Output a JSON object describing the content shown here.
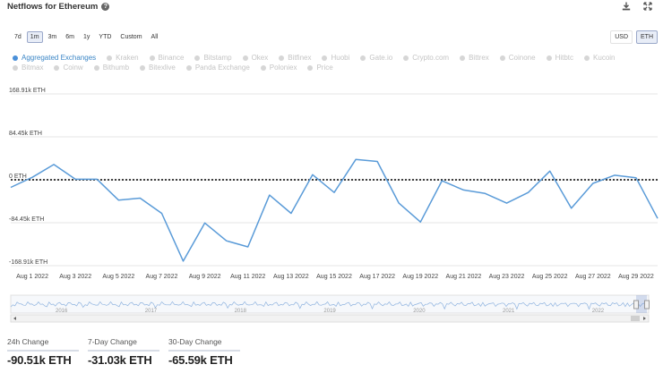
{
  "title": "Netflows for Ethereum",
  "ranges": [
    "7d",
    "1m",
    "3m",
    "6m",
    "1y",
    "YTD",
    "Custom",
    "All"
  ],
  "active_range": "1m",
  "units": [
    "USD",
    "ETH"
  ],
  "active_unit": "ETH",
  "legend": [
    {
      "label": "Aggregated Exchanges",
      "active": true
    },
    {
      "label": "Kraken",
      "active": false
    },
    {
      "label": "Binance",
      "active": false
    },
    {
      "label": "Bitstamp",
      "active": false
    },
    {
      "label": "Okex",
      "active": false
    },
    {
      "label": "Bitfinex",
      "active": false
    },
    {
      "label": "Huobi",
      "active": false
    },
    {
      "label": "Gate.io",
      "active": false
    },
    {
      "label": "Crypto.com",
      "active": false
    },
    {
      "label": "Bittrex",
      "active": false
    },
    {
      "label": "Coinone",
      "active": false
    },
    {
      "label": "Hitbtc",
      "active": false
    },
    {
      "label": "Kucoin",
      "active": false
    },
    {
      "label": "Bitmax",
      "active": false
    },
    {
      "label": "Coinw",
      "active": false
    },
    {
      "label": "Bithumb",
      "active": false
    },
    {
      "label": "Bitexlive",
      "active": false
    },
    {
      "label": "Panda Exchange",
      "active": false
    },
    {
      "label": "Poloniex",
      "active": false
    },
    {
      "label": "Price",
      "active": false
    }
  ],
  "colors": {
    "line": "#5a9bd8",
    "zero_line": "#000000",
    "grid": "#e6e6e6"
  },
  "chart_data": {
    "type": "line",
    "ylabel": "",
    "ylim": [
      -168.91,
      168.91
    ],
    "y_ticks": [
      168.91,
      84.45,
      0,
      -84.45,
      -168.91
    ],
    "y_tick_labels": [
      "168.91k ETH",
      "84.45k ETH",
      "0 ETH",
      "-84.45k ETH",
      "-168.91k ETH"
    ],
    "x_tick_labels": [
      "Aug 1 2022",
      "Aug 3 2022",
      "Aug 5 2022",
      "Aug 7 2022",
      "Aug 9 2022",
      "Aug 11 2022",
      "Aug 13 2022",
      "Aug 15 2022",
      "Aug 17 2022",
      "Aug 19 2022",
      "Aug 21 2022",
      "Aug 23 2022",
      "Aug 25 2022",
      "Aug 27 2022",
      "Aug 29 2022"
    ],
    "x_range": [
      "Jul 31 2022",
      "Aug 30 2022"
    ],
    "series": [
      {
        "values": [
          {
            "x": "Jul 31 2022",
            "y": -15
          },
          {
            "x": "Aug 1 2022",
            "y": 5
          },
          {
            "x": "Aug 2 2022",
            "y": 30
          },
          {
            "x": "Aug 3 2022",
            "y": 1
          },
          {
            "x": "Aug 4 2022",
            "y": 1
          },
          {
            "x": "Aug 5 2022",
            "y": -40
          },
          {
            "x": "Aug 6 2022",
            "y": -36
          },
          {
            "x": "Aug 7 2022",
            "y": -66
          },
          {
            "x": "Aug 8 2022",
            "y": -160
          },
          {
            "x": "Aug 9 2022",
            "y": -85
          },
          {
            "x": "Aug 10 2022",
            "y": -120
          },
          {
            "x": "Aug 11 2022",
            "y": -132
          },
          {
            "x": "Aug 12 2022",
            "y": -30
          },
          {
            "x": "Aug 13 2022",
            "y": -66
          },
          {
            "x": "Aug 14 2022",
            "y": 10
          },
          {
            "x": "Aug 15 2022",
            "y": -25
          },
          {
            "x": "Aug 16 2022",
            "y": 40
          },
          {
            "x": "Aug 17 2022",
            "y": 36
          },
          {
            "x": "Aug 18 2022",
            "y": -46
          },
          {
            "x": "Aug 19 2022",
            "y": -83
          },
          {
            "x": "Aug 20 2022",
            "y": -2
          },
          {
            "x": "Aug 21 2022",
            "y": -20
          },
          {
            "x": "Aug 22 2022",
            "y": -27
          },
          {
            "x": "Aug 23 2022",
            "y": -46
          },
          {
            "x": "Aug 24 2022",
            "y": -25
          },
          {
            "x": "Aug 25 2022",
            "y": 17
          },
          {
            "x": "Aug 26 2022",
            "y": -56
          },
          {
            "x": "Aug 27 2022",
            "y": -7
          },
          {
            "x": "Aug 28 2022",
            "y": 9
          },
          {
            "x": "Aug 29 2022",
            "y": 4
          },
          {
            "x": "Aug 30 2022",
            "y": -76
          }
        ]
      }
    ],
    "reference_line": {
      "y": 0,
      "style": "dotted"
    },
    "grid": true,
    "legend_position": "top-left"
  },
  "navigator": {
    "year_labels": [
      "2016",
      "2017",
      "2018",
      "2019",
      "2020",
      "2021",
      "2022"
    ]
  },
  "stats": [
    {
      "label": "24h Change",
      "value": "-90.51k ETH"
    },
    {
      "label": "7-Day Change",
      "value": "-31.03k ETH"
    },
    {
      "label": "30-Day Change",
      "value": "-65.59k ETH"
    }
  ]
}
